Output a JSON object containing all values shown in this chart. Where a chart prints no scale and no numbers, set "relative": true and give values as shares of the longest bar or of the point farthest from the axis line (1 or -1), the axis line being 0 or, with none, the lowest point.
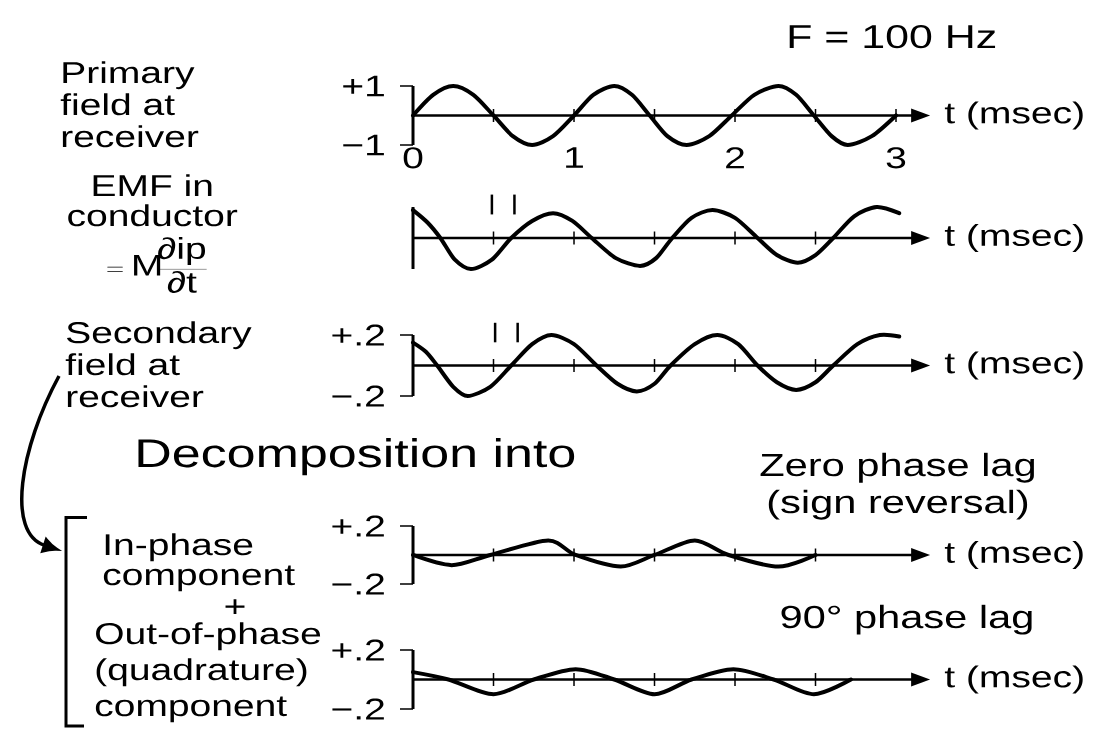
{
  "chart_data": [
    {
      "type": "line",
      "ylabel": "Primary field at receiver",
      "xlabel": "t (msec)",
      "annotations": [
        "F = 100 Hz"
      ],
      "x": [
        0,
        0.125,
        0.25,
        0.375,
        0.5,
        0.62,
        0.74,
        0.87,
        1,
        1.12,
        1.25,
        1.36,
        1.47,
        1.58,
        1.7,
        1.84,
        1.98,
        2.12,
        2.27,
        2.38,
        2.49,
        2.6,
        2.7,
        2.85,
        3
      ],
      "values": [
        0,
        0.7,
        1,
        0.7,
        0,
        -0.7,
        -1,
        -0.7,
        0,
        0.7,
        1,
        0.7,
        0,
        -0.7,
        -1,
        -0.7,
        0,
        0.7,
        1,
        0.7,
        0,
        -0.7,
        -1,
        -0.7,
        0
      ],
      "color": "#000000",
      "xlim": [
        0,
        3.1
      ],
      "ylim": [
        -1,
        1
      ],
      "xticks": [
        0,
        {
          "value": 0.5,
          "label": null
        },
        1,
        {
          "value": 1.5,
          "label": null
        },
        2,
        {
          "value": 2.5,
          "label": null
        },
        3
      ],
      "yticks": [
        {
          "value": -1,
          "label": "−1"
        },
        {
          "value": 1,
          "label": "+1"
        }
      ],
      "marker": "none",
      "line_style": "solid"
    },
    {
      "type": "line",
      "ylabel": "EMF in conductor",
      "xlabel": "t (msec)",
      "annotations": [
        "= \\mathrm{M}\\frac{\\mbox{∂ip}}{\\mbox{∂t}}"
      ],
      "relative": true,
      "x": [
        0,
        0.09,
        0.17,
        0.26,
        0.36,
        0.49,
        0.61,
        0.74,
        0.87,
        0.99,
        1.11,
        1.26,
        1.41,
        1.51,
        1.61,
        1.73,
        1.86,
        2,
        2.14,
        2.26,
        2.39,
        2.5,
        2.61,
        2.74,
        2.88,
        3.02
      ],
      "values": [
        0.9,
        0.5,
        0,
        -0.7,
        -1,
        -0.7,
        0,
        0.55,
        0.8,
        0.55,
        0,
        -0.65,
        -0.9,
        -0.65,
        0,
        0.65,
        0.9,
        0.65,
        0,
        -0.55,
        -0.8,
        -0.55,
        0,
        0.7,
        1,
        0.8
      ],
      "color": "#000000",
      "xlim": [
        0,
        3.1
      ],
      "xticks": [
        {
          "value": 0.5,
          "label": null
        },
        {
          "value": 1,
          "label": null
        },
        {
          "value": 1.5,
          "label": null
        },
        {
          "value": 2,
          "label": null
        },
        {
          "value": 2.5,
          "label": null
        }
      ],
      "tick_labels": false,
      "ref_lines": [
        {
          "axis": "x",
          "value": 0.49
        },
        {
          "axis": "x",
          "value": 0.63
        }
      ],
      "marker": "none",
      "line_style": "solid"
    },
    {
      "type": "line",
      "ylabel": "Secondary field at receiver",
      "xlabel": "t (msec)",
      "x": [
        0,
        0.08,
        0.15,
        0.25,
        0.34,
        0.48,
        0.61,
        0.74,
        0.86,
        1,
        1.14,
        1.27,
        1.39,
        1.5,
        1.6,
        1.75,
        1.89,
        2.02,
        2.14,
        2.26,
        2.38,
        2.5,
        2.61,
        2.76,
        2.9,
        3.02
      ],
      "values": [
        0.15,
        0.09,
        0,
        -0.14,
        -0.2,
        -0.14,
        0,
        0.14,
        0.2,
        0.14,
        0,
        -0.12,
        -0.17,
        -0.12,
        0,
        0.14,
        0.2,
        0.14,
        0,
        -0.11,
        -0.16,
        -0.11,
        0,
        0.14,
        0.2,
        0.19
      ],
      "color": "#000000",
      "xlim": [
        0,
        3.1
      ],
      "ylim": [
        -0.2,
        0.2
      ],
      "xticks": [
        {
          "value": 0.5,
          "label": null
        },
        {
          "value": 1,
          "label": null
        },
        {
          "value": 1.5,
          "label": null
        },
        {
          "value": 2,
          "label": null
        },
        {
          "value": 2.5,
          "label": null
        }
      ],
      "yticks": [
        {
          "value": -0.2,
          "label": "−.2"
        },
        {
          "value": 0.2,
          "label": "+.2"
        }
      ],
      "tick_labels": "y",
      "ref_lines": [
        {
          "axis": "x",
          "value": 0.51
        },
        {
          "axis": "x",
          "value": 0.65
        }
      ],
      "marker": "none",
      "line_style": "solid"
    },
    {
      "type": "line",
      "title": "Decomposition into",
      "ylabel": "In-phase component",
      "xlabel": "t (msec)",
      "annotations": [
        "Zero phase lag (sign reversal)",
        "+"
      ],
      "x": [
        0,
        0.24,
        0.48,
        0.84,
        1.01,
        1.29,
        1.5,
        1.75,
        1.96,
        2.27,
        2.5
      ],
      "values": [
        0,
        -0.07,
        0,
        0.1,
        0,
        -0.08,
        0,
        0.1,
        0,
        -0.08,
        0
      ],
      "color": "#000000",
      "xlim": [
        0,
        3.1
      ],
      "ylim": [
        -0.2,
        0.2
      ],
      "xticks": [
        {
          "value": 0.5,
          "label": null
        },
        {
          "value": 1,
          "label": null
        },
        {
          "value": 1.5,
          "label": null
        },
        {
          "value": 2,
          "label": null
        },
        {
          "value": 2.5,
          "label": null
        }
      ],
      "yticks": [
        {
          "value": -0.2,
          "label": "−.2"
        },
        {
          "value": 0.2,
          "label": "+.2"
        }
      ],
      "tick_labels": "y",
      "marker": "none",
      "line_style": "solid"
    },
    {
      "type": "line",
      "ylabel": "Out-of-phase (quadrature) component",
      "xlabel": "t (msec)",
      "annotations": [
        "90° phase lag"
      ],
      "x": [
        0,
        0.22,
        0.5,
        0.75,
        1.01,
        1.25,
        1.5,
        1.73,
        1.99,
        2.24,
        2.49,
        2.72
      ],
      "values": [
        0.05,
        0,
        -0.1,
        0,
        0.07,
        0,
        -0.1,
        0,
        0.07,
        0,
        -0.1,
        0
      ],
      "color": "#000000",
      "xlim": [
        0,
        3.1
      ],
      "ylim": [
        -0.2,
        0.2
      ],
      "xticks": [
        {
          "value": 0.5,
          "label": null
        },
        {
          "value": 1,
          "label": null
        },
        {
          "value": 1.5,
          "label": null
        },
        {
          "value": 2,
          "label": null
        },
        {
          "value": 2.5,
          "label": null
        }
      ],
      "yticks": [
        {
          "value": -0.2,
          "label": "−.2"
        },
        {
          "value": 0.2,
          "label": "+.2"
        }
      ],
      "tick_labels": "y",
      "marker": "none",
      "line_style": "solid"
    }
  ]
}
